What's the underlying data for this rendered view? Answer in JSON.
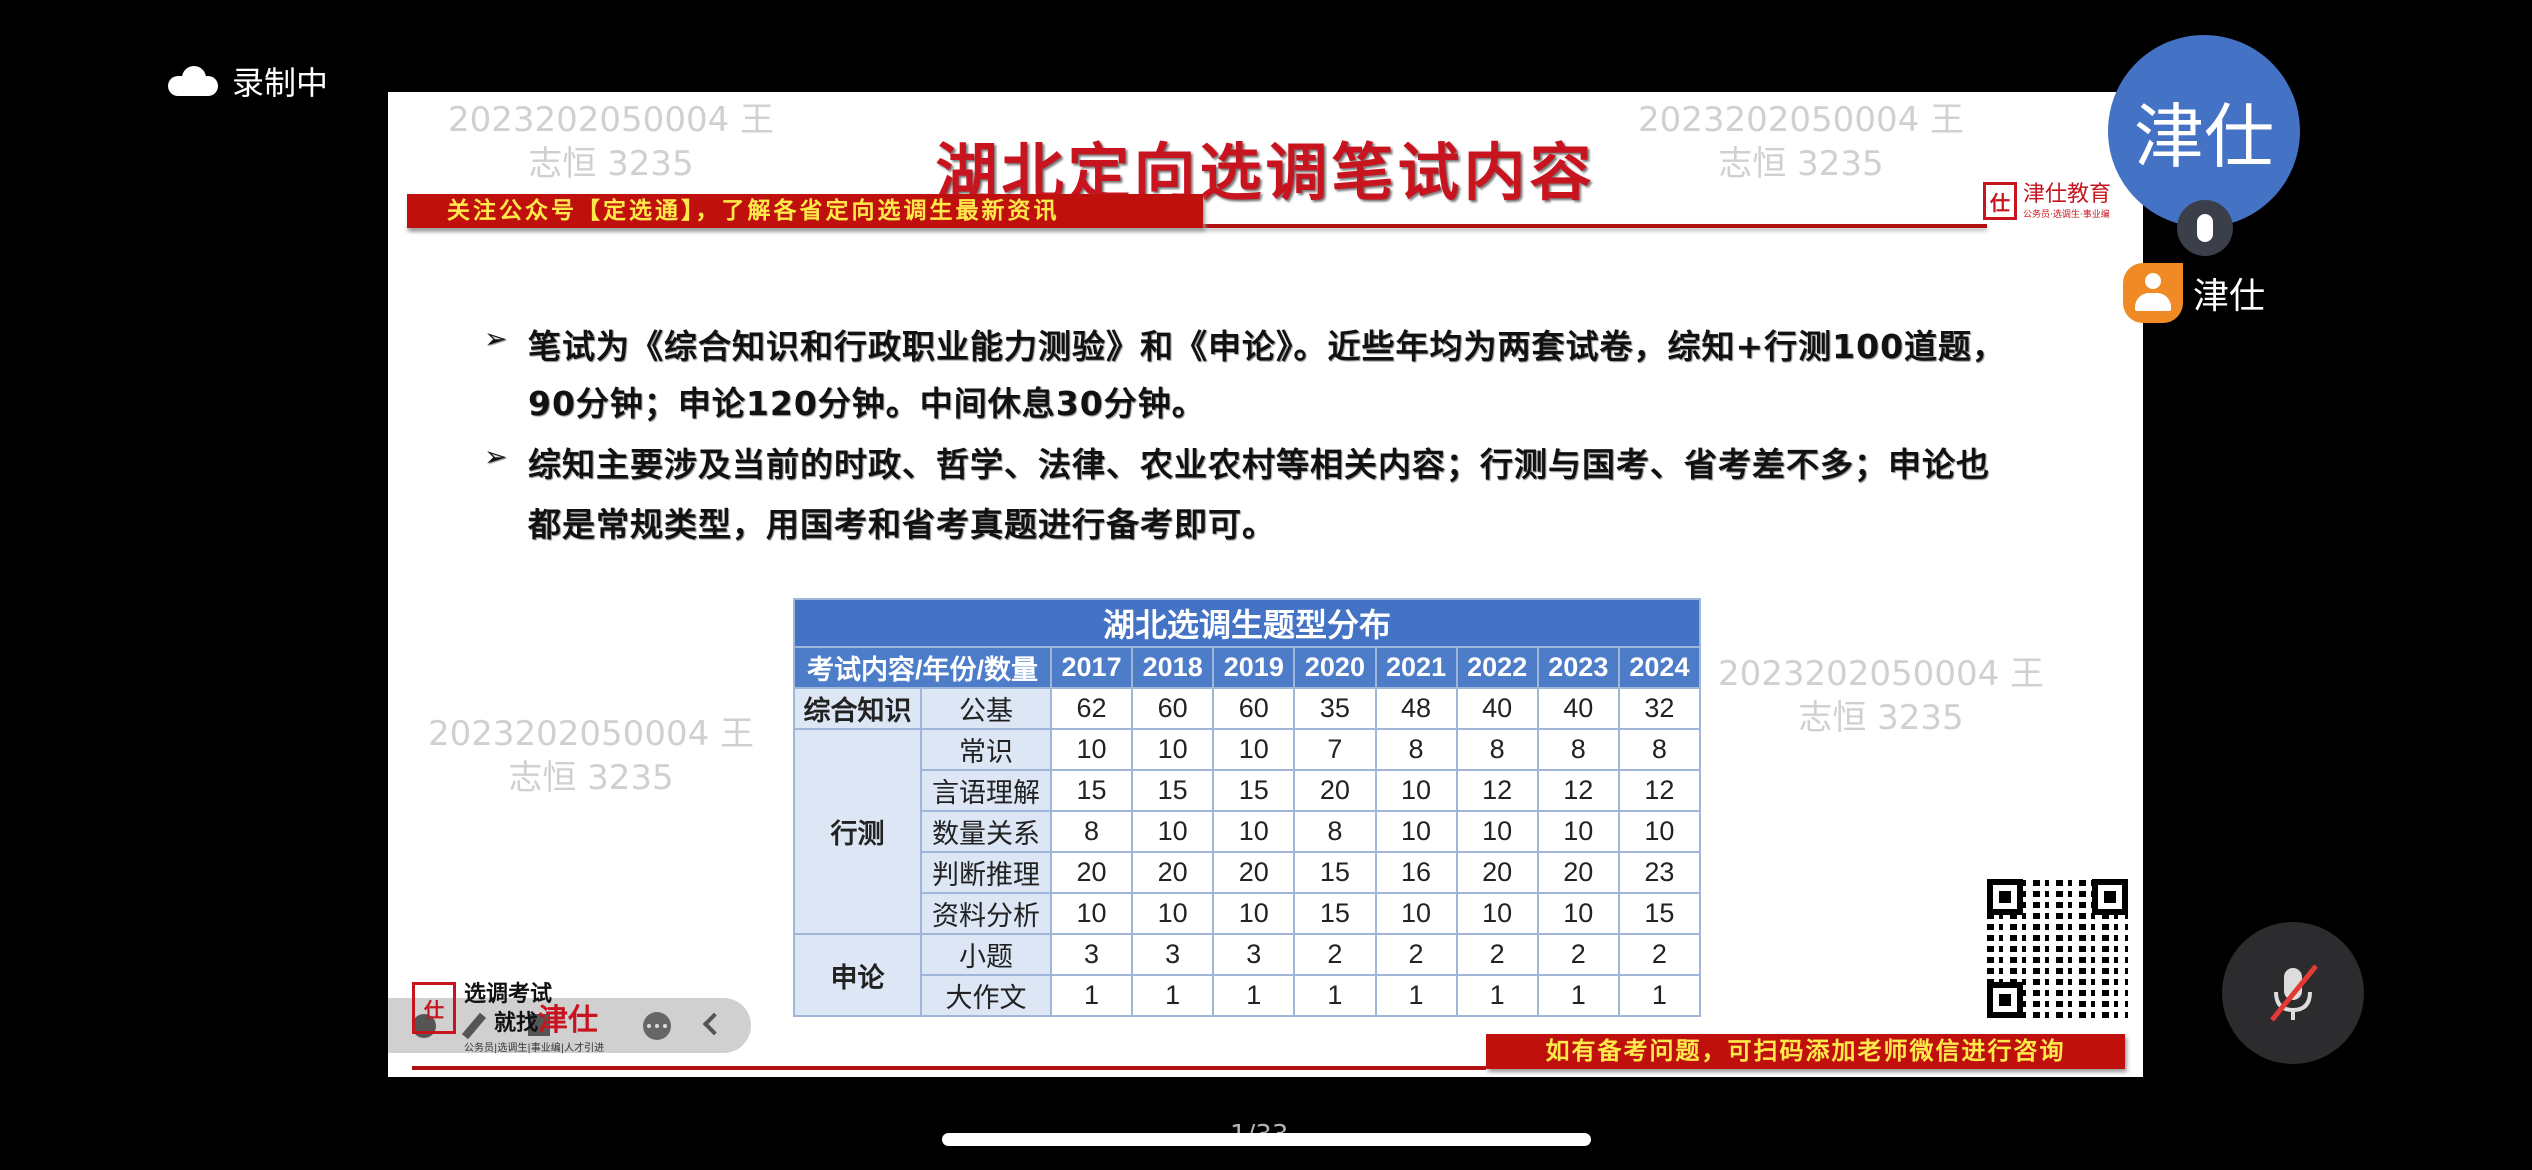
{
  "recording": {
    "icon": "cloud-icon",
    "label": "录制中"
  },
  "slide": {
    "title": "湖北定向选调笔试内容",
    "banner": "关注公众号【定选通】，了解各省定向选调生最新资讯",
    "logo": {
      "name": "津仕教育",
      "slogan": "公务员·选调生·事业编"
    },
    "watermark": "2023202050004 王\n志恒 3235",
    "bullets": [
      {
        "lines": [
          "笔试为《综合知识和行政职业能力测验》和《申论》。近些年均为两套试卷，综知+行测100道题，",
          "90分钟；申论120分钟。中间休息30分钟。"
        ]
      },
      {
        "lines": [
          "综知主要涉及当前的时政、哲学、法律、农业农村等相关内容；行测与国考、省考差不多；申论也",
          "都是常规类型，用国考和省考真题进行备考即可。"
        ]
      }
    ],
    "table": {
      "title": "湖北选调生题型分布",
      "header_label": "考试内容/年份/数量",
      "years": [
        "2017",
        "2018",
        "2019",
        "2020",
        "2021",
        "2022",
        "2023",
        "2024"
      ],
      "groups": [
        {
          "name": "综合知识",
          "rows": [
            {
              "label": "公基",
              "values": [
                62,
                60,
                60,
                35,
                48,
                40,
                40,
                32
              ]
            }
          ]
        },
        {
          "name": "行测",
          "rows": [
            {
              "label": "常识",
              "values": [
                10,
                10,
                10,
                7,
                8,
                8,
                8,
                8
              ]
            },
            {
              "label": "言语理解",
              "values": [
                15,
                15,
                15,
                20,
                10,
                12,
                12,
                12
              ]
            },
            {
              "label": "数量关系",
              "values": [
                8,
                10,
                10,
                8,
                10,
                10,
                10,
                10
              ]
            },
            {
              "label": "判断推理",
              "values": [
                20,
                20,
                20,
                15,
                16,
                20,
                20,
                23
              ]
            },
            {
              "label": "资料分析",
              "values": [
                10,
                10,
                10,
                15,
                10,
                10,
                10,
                15
              ]
            }
          ]
        },
        {
          "name": "申论",
          "rows": [
            {
              "label": "小题",
              "values": [
                3,
                3,
                3,
                2,
                2,
                2,
                2,
                2
              ]
            },
            {
              "label": "大作文",
              "values": [
                1,
                1,
                1,
                1,
                1,
                1,
                1,
                1
              ]
            }
          ]
        }
      ]
    },
    "footer_banner": "如有备考问题，可扫码添加老师微信进行咨询",
    "bottom_logo": {
      "line1": "选调考试",
      "line2": "就找",
      "brand": "津仕",
      "slogan": "公务员|选调生|事业编|人才引进"
    }
  },
  "page_indicator": "1/33",
  "participant": {
    "avatar_text": "津仕",
    "name": "津仕"
  },
  "colors": {
    "title_red": "#c8141e",
    "banner_yellow": "#ffe94a",
    "table_blue": "#4472c4",
    "avatar_blue": "#4472c4",
    "user_orange": "#f08a24"
  }
}
